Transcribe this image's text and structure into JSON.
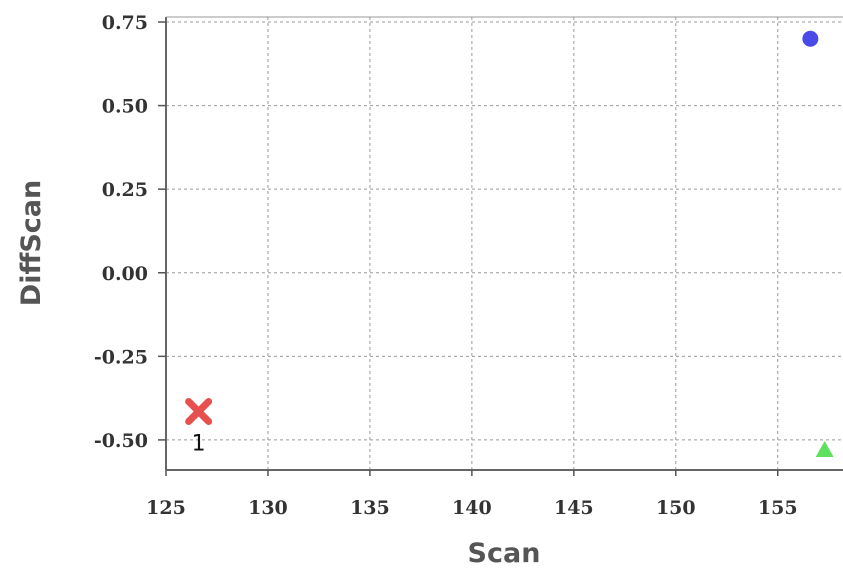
{
  "chart_data": {
    "type": "scatter",
    "xlabel": "Scan",
    "ylabel": "DiffScan",
    "xlim": [
      125,
      158.2
    ],
    "ylim": [
      -0.59,
      0.765
    ],
    "x_ticks": [
      125,
      130,
      135,
      140,
      145,
      150,
      155
    ],
    "x_tick_labels": [
      "125",
      "130",
      "135",
      "140",
      "145",
      "150",
      "155"
    ],
    "y_ticks": [
      0.75,
      0.5,
      0.25,
      0.0,
      -0.25,
      -0.5
    ],
    "y_tick_labels": [
      "0.75",
      "0.50",
      "0.25",
      "0.00",
      "-0.25",
      "-0.50"
    ],
    "grid": true,
    "points": [
      {
        "x": 126.6,
        "y": -0.415,
        "marker": "x",
        "color": "#e8504f",
        "label": "1"
      },
      {
        "x": 156.6,
        "y": 0.7,
        "marker": "circle",
        "color": "#4a4ae8",
        "label": ""
      },
      {
        "x": 157.3,
        "y": -0.53,
        "marker": "triangle",
        "color": "#5fe05f",
        "label": ""
      }
    ]
  }
}
